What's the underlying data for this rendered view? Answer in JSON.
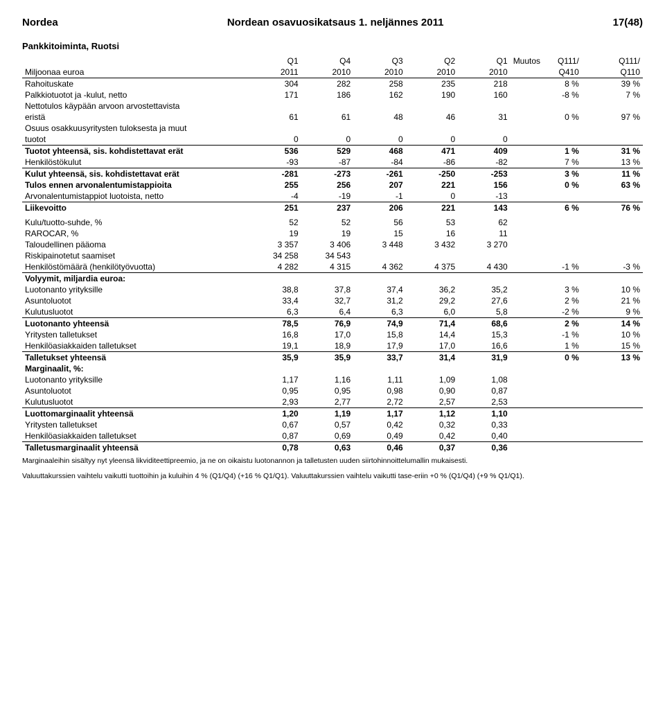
{
  "header": {
    "left": "Nordea",
    "center": "Nordean osavuosikatsaus 1. neljännes 2011",
    "right": "17(48)"
  },
  "section_title": "Pankkitoiminta, Ruotsi",
  "col_headers": {
    "q_labels": [
      "Q1",
      "Q4",
      "Q3",
      "Q2",
      "Q1"
    ],
    "muutos": "Muutos",
    "chg_labels": [
      "Q111/",
      "Q111/"
    ],
    "row2_label": "Miljoonaa euroa",
    "years": [
      "2011",
      "2010",
      "2010",
      "2010",
      "2010"
    ],
    "chg_row2": [
      "Q410",
      "Q110"
    ]
  },
  "rows": [
    {
      "label": "Rahoituskate",
      "q": [
        "304",
        "282",
        "258",
        "235",
        "218"
      ],
      "chg": [
        "8 %",
        "39 %"
      ],
      "bold": false
    },
    {
      "label": "Palkkiotuotot ja -kulut, netto",
      "q": [
        "171",
        "186",
        "162",
        "190",
        "160"
      ],
      "chg": [
        "-8 %",
        "7 %"
      ],
      "bold": false
    },
    {
      "label": "Nettotulos käypään arvoon arvostettavista",
      "q": [
        "",
        "",
        "",
        "",
        ""
      ],
      "chg": [
        "",
        ""
      ],
      "bold": false,
      "nopad": true
    },
    {
      "label": "eristä",
      "q": [
        "61",
        "61",
        "48",
        "46",
        "31"
      ],
      "chg": [
        "0 %",
        "97 %"
      ],
      "bold": false
    },
    {
      "label": "Osuus osakkuusyritysten tuloksesta ja muut",
      "q": [
        "",
        "",
        "",
        "",
        ""
      ],
      "chg": [
        "",
        ""
      ],
      "bold": false,
      "nopad": true
    },
    {
      "label": "tuotot",
      "q": [
        "0",
        "0",
        "0",
        "0",
        "0"
      ],
      "chg": [
        "",
        ""
      ],
      "bold": false,
      "underline": true
    },
    {
      "label": "Tuotot yhteensä, sis. kohdistettavat erät",
      "q": [
        "536",
        "529",
        "468",
        "471",
        "409"
      ],
      "chg": [
        "1 %",
        "31 %"
      ],
      "bold": true
    },
    {
      "label": "Henkilöstökulut",
      "q": [
        "-93",
        "-87",
        "-84",
        "-86",
        "-82"
      ],
      "chg": [
        "7 %",
        "13 %"
      ],
      "bold": false,
      "underline": true
    },
    {
      "label": "Kulut yhteensä, sis. kohdistettavat erät",
      "q": [
        "-281",
        "-273",
        "-261",
        "-250",
        "-253"
      ],
      "chg": [
        "3 %",
        "11 %"
      ],
      "bold": true
    },
    {
      "label": "Tulos ennen arvonalentumistappioita",
      "q": [
        "255",
        "256",
        "207",
        "221",
        "156"
      ],
      "chg": [
        "0 %",
        "63 %"
      ],
      "bold": true
    },
    {
      "label": "Arvonalentumistappiot luotoista, netto",
      "q": [
        "-4",
        "-19",
        "-1",
        "0",
        "-13"
      ],
      "chg": [
        "",
        ""
      ],
      "bold": false,
      "underline": true
    },
    {
      "label": "Liikevoitto",
      "q": [
        "251",
        "237",
        "206",
        "221",
        "143"
      ],
      "chg": [
        "6 %",
        "76 %"
      ],
      "bold": true
    },
    {
      "label": "Kulu/tuotto-suhde, %",
      "q": [
        "52",
        "52",
        "56",
        "53",
        "62"
      ],
      "chg": [
        "",
        ""
      ],
      "bold": false,
      "gap": true
    },
    {
      "label": "RAROCAR, %",
      "q": [
        "19",
        "19",
        "15",
        "16",
        "11"
      ],
      "chg": [
        "",
        ""
      ],
      "bold": false
    },
    {
      "label": "Taloudellinen pääoma",
      "q": [
        "3 357",
        "3 406",
        "3 448",
        "3 432",
        "3 270"
      ],
      "chg": [
        "",
        ""
      ],
      "bold": false
    },
    {
      "label": "Riskipainotetut saamiset",
      "q": [
        "34 258",
        "34 543",
        "",
        "",
        ""
      ],
      "chg": [
        "",
        ""
      ],
      "bold": false
    },
    {
      "label": "Henkilöstömäärä (henkilötyövuotta)",
      "q": [
        "4 282",
        "4 315",
        "4 362",
        "4 375",
        "4 430"
      ],
      "chg": [
        "-1 %",
        "-3 %"
      ],
      "bold": false,
      "underline": true
    },
    {
      "label": "Volyymit, miljardia euroa:",
      "q": [
        "",
        "",
        "",
        "",
        ""
      ],
      "chg": [
        "",
        ""
      ],
      "bold": true
    },
    {
      "label": "Luotonanto yrityksille",
      "q": [
        "38,8",
        "37,8",
        "37,4",
        "36,2",
        "35,2"
      ],
      "chg": [
        "3 %",
        "10 %"
      ],
      "bold": false
    },
    {
      "label": "Asuntoluotot",
      "q": [
        "33,4",
        "32,7",
        "31,2",
        "29,2",
        "27,6"
      ],
      "chg": [
        "2 %",
        "21 %"
      ],
      "bold": false
    },
    {
      "label": "Kulutusluotot",
      "q": [
        "6,3",
        "6,4",
        "6,3",
        "6,0",
        "5,8"
      ],
      "chg": [
        "-2 %",
        "9 %"
      ],
      "bold": false,
      "underline": true
    },
    {
      "label": "Luotonanto yhteensä",
      "q": [
        "78,5",
        "76,9",
        "74,9",
        "71,4",
        "68,6"
      ],
      "chg": [
        "2 %",
        "14 %"
      ],
      "bold": true
    },
    {
      "label": "Yritysten talletukset",
      "q": [
        "16,8",
        "17,0",
        "15,8",
        "14,4",
        "15,3"
      ],
      "chg": [
        "-1 %",
        "10 %"
      ],
      "bold": false
    },
    {
      "label": "Henkilöasiakkaiden talletukset",
      "q": [
        "19,1",
        "18,9",
        "17,9",
        "17,0",
        "16,6"
      ],
      "chg": [
        "1 %",
        "15 %"
      ],
      "bold": false,
      "underline": true
    },
    {
      "label": "Talletukset yhteensä",
      "q": [
        "35,9",
        "35,9",
        "33,7",
        "31,4",
        "31,9"
      ],
      "chg": [
        "0 %",
        "13 %"
      ],
      "bold": true
    },
    {
      "label": "Marginaalit, %:",
      "q": [
        "",
        "",
        "",
        "",
        ""
      ],
      "chg": [
        "",
        ""
      ],
      "bold": true
    },
    {
      "label": "Luotonanto yrityksille",
      "q": [
        "1,17",
        "1,16",
        "1,11",
        "1,09",
        "1,08"
      ],
      "chg": [
        "",
        ""
      ],
      "bold": false
    },
    {
      "label": "Asuntoluotot",
      "q": [
        "0,95",
        "0,95",
        "0,98",
        "0,90",
        "0,87"
      ],
      "chg": [
        "",
        ""
      ],
      "bold": false
    },
    {
      "label": "Kulutusluotot",
      "q": [
        "2,93",
        "2,77",
        "2,72",
        "2,57",
        "2,53"
      ],
      "chg": [
        "",
        ""
      ],
      "bold": false,
      "underline": true
    },
    {
      "label": "Luottomarginaalit yhteensä",
      "q": [
        "1,20",
        "1,19",
        "1,17",
        "1,12",
        "1,10"
      ],
      "chg": [
        "",
        ""
      ],
      "bold": true
    },
    {
      "label": "Yritysten talletukset",
      "q": [
        "0,67",
        "0,57",
        "0,42",
        "0,32",
        "0,33"
      ],
      "chg": [
        "",
        ""
      ],
      "bold": false
    },
    {
      "label": "Henkilöasiakkaiden talletukset",
      "q": [
        "0,87",
        "0,69",
        "0,49",
        "0,42",
        "0,40"
      ],
      "chg": [
        "",
        ""
      ],
      "bold": false,
      "underline": true
    },
    {
      "label": "Talletusmarginaalit yhteensä",
      "q": [
        "0,78",
        "0,63",
        "0,46",
        "0,37",
        "0,36"
      ],
      "chg": [
        "",
        ""
      ],
      "bold": true
    }
  ],
  "footnote1": "Marginaaleihin sisältyy nyt yleensä likviditeettipreemio, ja ne on oikaistu luotonannon ja talletusten uuden siirtohinnoittelumallin mukaisesti.",
  "footnote2": "Valuuttakurssien vaihtelu vaikutti tuottoihin ja kuluihin 4 % (Q1/Q4) (+16 % Q1/Q1). Valuuttakurssien vaihtelu vaikutti tase-eriin +0 % (Q1/Q4) (+9 % Q1/Q1)."
}
